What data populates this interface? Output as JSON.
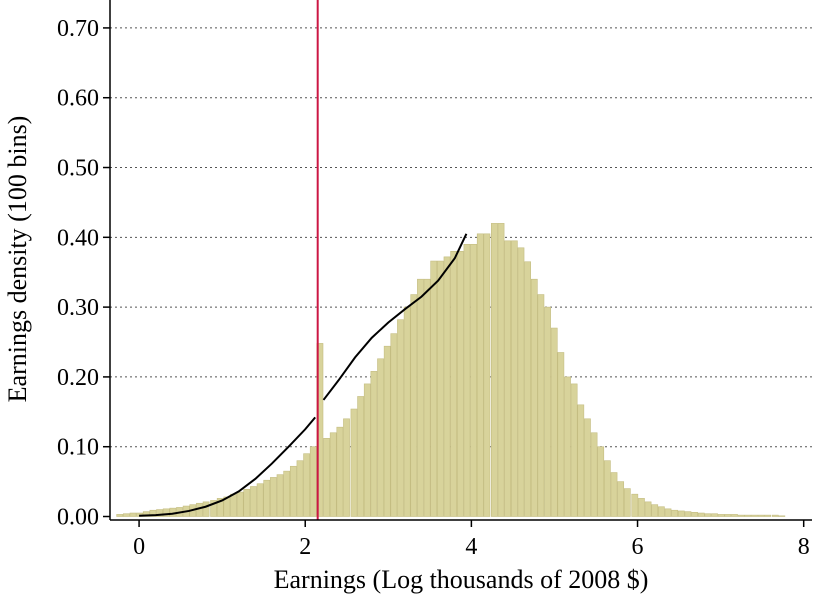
{
  "chart_data": {
    "type": "bar",
    "title": "",
    "xlabel": "Earnings (Log thousands of 2008 $)",
    "ylabel": "Earnings density (100 bins)",
    "xlim": [
      -0.35,
      8.1
    ],
    "ylim": [
      -0.005,
      0.74
    ],
    "x_ticks": [
      0,
      2,
      4,
      6,
      8
    ],
    "x_tick_labels": [
      "0",
      "2",
      "4",
      "6",
      "8"
    ],
    "y_ticks": [
      0.0,
      0.1,
      0.2,
      0.3,
      0.4,
      0.5,
      0.6,
      0.7
    ],
    "y_tick_labels": [
      "0.00",
      "0.10",
      "0.20",
      "0.30",
      "0.40",
      "0.50",
      "0.60",
      "0.70"
    ],
    "grid": "horizontal dotted",
    "bin_width": 0.081,
    "histogram": {
      "bin_start": [
        -0.27,
        -0.19,
        -0.11,
        -0.03,
        0.05,
        0.13,
        0.21,
        0.29,
        0.37,
        0.45,
        0.53,
        0.61,
        0.69,
        0.77,
        0.86,
        0.94,
        1.02,
        1.1,
        1.18,
        1.26,
        1.34,
        1.42,
        1.5,
        1.58,
        1.66,
        1.74,
        1.82,
        1.9,
        1.98,
        2.06,
        2.14,
        2.22,
        2.3,
        2.38,
        2.46,
        2.55,
        2.63,
        2.71,
        2.79,
        2.87,
        2.95,
        3.03,
        3.11,
        3.19,
        3.27,
        3.35,
        3.43,
        3.51,
        3.59,
        3.67,
        3.75,
        3.83,
        3.91,
        3.99,
        4.07,
        4.15,
        4.24,
        4.32,
        4.4,
        4.48,
        4.56,
        4.64,
        4.72,
        4.8,
        4.88,
        4.96,
        5.04,
        5.12,
        5.2,
        5.28,
        5.36,
        5.44,
        5.52,
        5.6,
        5.68,
        5.76,
        5.84,
        5.93,
        6.01,
        6.09,
        6.17,
        6.25,
        6.33,
        6.41,
        6.49,
        6.57,
        6.65,
        6.73,
        6.81,
        6.89,
        6.97,
        7.05,
        7.13,
        7.21,
        7.29,
        7.37,
        7.45,
        7.53,
        7.62,
        7.7
      ],
      "density": [
        0.003,
        0.004,
        0.005,
        0.005,
        0.007,
        0.009,
        0.01,
        0.011,
        0.012,
        0.013,
        0.015,
        0.017,
        0.019,
        0.021,
        0.023,
        0.026,
        0.028,
        0.032,
        0.035,
        0.039,
        0.043,
        0.047,
        0.052,
        0.056,
        0.06,
        0.065,
        0.072,
        0.08,
        0.09,
        0.1,
        0.248,
        0.112,
        0.12,
        0.128,
        0.14,
        0.154,
        0.172,
        0.19,
        0.208,
        0.226,
        0.244,
        0.262,
        0.282,
        0.3,
        0.318,
        0.34,
        0.34,
        0.366,
        0.366,
        0.372,
        0.38,
        0.38,
        0.39,
        0.39,
        0.405,
        0.405,
        0.42,
        0.42,
        0.395,
        0.395,
        0.385,
        0.365,
        0.34,
        0.318,
        0.3,
        0.27,
        0.235,
        0.2,
        0.19,
        0.16,
        0.14,
        0.12,
        0.1,
        0.08,
        0.063,
        0.05,
        0.04,
        0.032,
        0.026,
        0.021,
        0.017,
        0.014,
        0.011,
        0.009,
        0.008,
        0.007,
        0.006,
        0.005,
        0.004,
        0.004,
        0.003,
        0.003,
        0.003,
        0.002,
        0.002,
        0.002,
        0.002,
        0.002,
        0.002,
        0.001
      ]
    },
    "fitted_curve_segments": [
      {
        "x": [
          0.0,
          0.2,
          0.4,
          0.6,
          0.8,
          1.0,
          1.2,
          1.4,
          1.6,
          1.8,
          2.0,
          2.12
        ],
        "y": [
          0.001,
          0.002,
          0.004,
          0.008,
          0.014,
          0.023,
          0.036,
          0.054,
          0.076,
          0.1,
          0.125,
          0.142
        ]
      },
      {
        "x": [
          2.22,
          2.4,
          2.6,
          2.8,
          3.0,
          3.2,
          3.4,
          3.6,
          3.8,
          3.94
        ],
        "y": [
          0.167,
          0.195,
          0.228,
          0.256,
          0.278,
          0.297,
          0.315,
          0.338,
          0.37,
          0.405
        ]
      }
    ],
    "reference_line": {
      "x": 2.15,
      "color": "#cc1744"
    },
    "colors": {
      "bar_fill": "#d8d39b",
      "bar_edge": "#c4bd82",
      "curve": "#000000",
      "grid": "#555555"
    }
  }
}
